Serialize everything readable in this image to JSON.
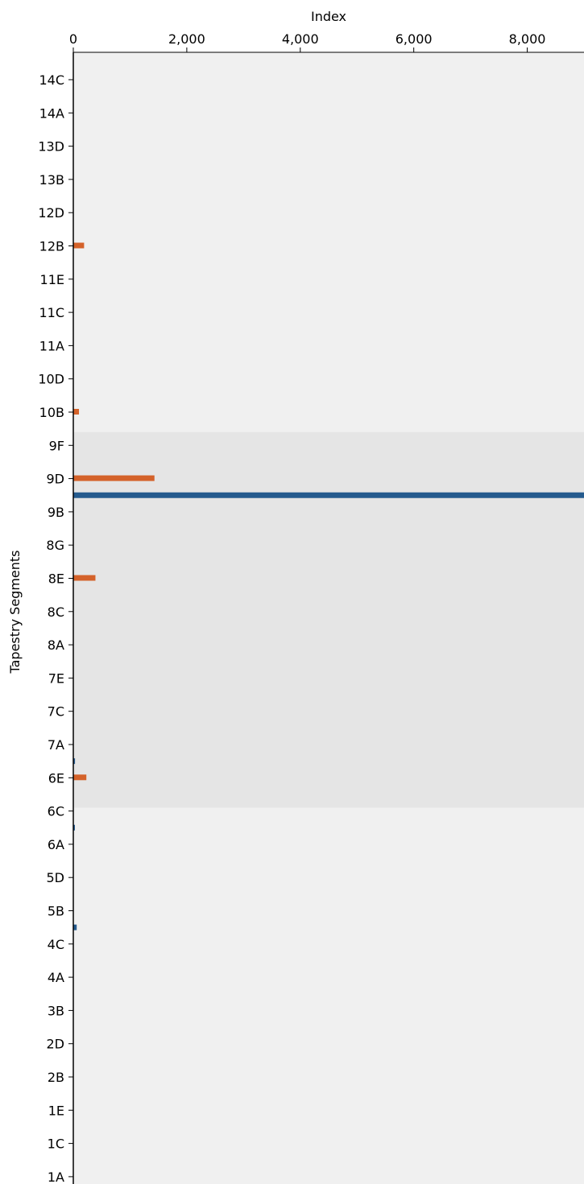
{
  "chart_data": {
    "type": "bar",
    "orientation": "horizontal",
    "xlabel": "Index",
    "ylabel": "Tapestry Segments",
    "x_axis_position": "top",
    "xlim": [
      0,
      9000
    ],
    "x_ticks": [
      0,
      2000,
      4000,
      6000,
      8000
    ],
    "x_tick_labels": [
      "0",
      "2,000",
      "4,000",
      "6,000",
      "8,000"
    ],
    "y_tick_labels": [
      "14C",
      "14A",
      "13D",
      "13B",
      "12D",
      "12B",
      "11E",
      "11C",
      "11A",
      "10D",
      "10B",
      "9F",
      "9D",
      "9B",
      "8G",
      "8E",
      "8C",
      "8A",
      "7E",
      "7C",
      "7A",
      "6E",
      "6C",
      "6A",
      "5D",
      "5B",
      "4C",
      "4A",
      "3B",
      "2D",
      "2B",
      "1E",
      "1C",
      "1A"
    ],
    "highlight_band": {
      "from_segment": "9F",
      "to_segment": "6C",
      "color": "#e5e5e5"
    },
    "plot_background": "#f0f0f0",
    "series": [
      {
        "color": "#d4622a",
        "bars": [
          {
            "segment": "12B",
            "value": 190
          },
          {
            "segment": "10B",
            "value": 100
          },
          {
            "segment": "9D",
            "value": 1430
          },
          {
            "segment": "8E",
            "value": 390
          },
          {
            "segment": "6E",
            "value": 230
          }
        ]
      },
      {
        "color": "#255b8e",
        "bars": [
          {
            "position_between": [
              "9D",
              "9B"
            ],
            "value": 9000
          },
          {
            "position_between": [
              "7A",
              "6E"
            ],
            "value": 30
          },
          {
            "position_between": [
              "6C",
              "6A"
            ],
            "value": 25
          },
          {
            "position_between": [
              "5B",
              "4C"
            ],
            "value": 60
          }
        ]
      }
    ]
  }
}
